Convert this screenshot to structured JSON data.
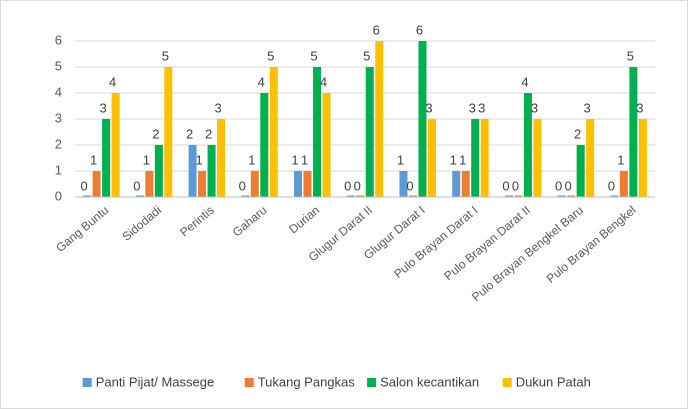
{
  "chart_data": {
    "type": "bar",
    "categories": [
      "Gang Buntu",
      "Sidodadi",
      "Perintis",
      "Gaharu",
      "Durian",
      "Glugur Darat II",
      "Glugur Darat I",
      "Pulo Brayan Darat I",
      "Pulo Brayan Darat II",
      "Pulo Brayan Bengkel Baru",
      "Pulo Brayan Bengkel"
    ],
    "series": [
      {
        "name": "Panti Pijat/ Massege",
        "color": "#5b9bd5",
        "values": [
          0,
          0,
          2,
          0,
          1,
          0,
          1,
          1,
          0,
          0,
          0
        ]
      },
      {
        "name": "Tukang Pangkas",
        "color": "#ed7d31",
        "values": [
          1,
          1,
          1,
          1,
          1,
          0,
          0,
          1,
          0,
          0,
          1
        ]
      },
      {
        "name": "Salon kecantikan",
        "color": "#00b050",
        "values": [
          3,
          2,
          2,
          4,
          5,
          5,
          6,
          3,
          4,
          2,
          5
        ]
      },
      {
        "name": "Dukun Patah",
        "color": "#ffc000",
        "values": [
          4,
          5,
          3,
          5,
          4,
          6,
          3,
          3,
          3,
          3,
          3
        ]
      }
    ],
    "ylim": [
      0,
      6
    ],
    "yticks": [
      0,
      1,
      2,
      3,
      4,
      5,
      6
    ],
    "grid": true,
    "legend": "bottom"
  }
}
